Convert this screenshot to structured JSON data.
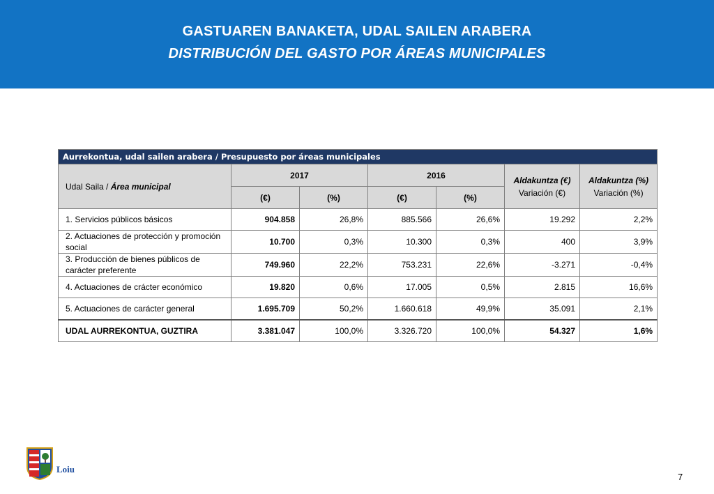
{
  "header": {
    "title": "GASTUAREN BANAKETA, UDAL SAILEN ARABERA",
    "subtitle": "DISTRIBUCIÓN DEL GASTO POR ÁREAS MUNICIPALES",
    "background_color": "#1273c4"
  },
  "table": {
    "caption": "Aurrekontua, udal sailen arabera  / Presupuesto  por áreas municipales",
    "area_header_eu": "Udal Saila / ",
    "area_header_es": "Área municipal",
    "year_2017": "2017",
    "year_2016": "2016",
    "unit_eur": "(€)",
    "unit_pct": "(%)",
    "var_eur_eu": "Aldakuntza (€)",
    "var_eur_es": "Variación (€)",
    "var_pct_eu": "Aldakuntza (%)",
    "var_pct_es": "Variación (%)",
    "rows": [
      {
        "label": "1. Servicios públicos básicos",
        "eur_2017": "904.858",
        "pct_2017": "26,8%",
        "eur_2016": "885.566",
        "pct_2016": "26,6%",
        "var_eur": "19.292",
        "var_pct": "2,2%"
      },
      {
        "label": "2. Actuaciones de protección y promoción social",
        "eur_2017": "10.700",
        "pct_2017": "0,3%",
        "eur_2016": "10.300",
        "pct_2016": "0,3%",
        "var_eur": "400",
        "var_pct": "3,9%"
      },
      {
        "label": "3. Producción de bienes públicos de carácter preferente",
        "eur_2017": "749.960",
        "pct_2017": "22,2%",
        "eur_2016": "753.231",
        "pct_2016": "22,6%",
        "var_eur": "-3.271",
        "var_pct": "-0,4%"
      },
      {
        "label": "4. Actuaciones de crácter económico",
        "eur_2017": "19.820",
        "pct_2017": "0,6%",
        "eur_2016": "17.005",
        "pct_2016": "0,5%",
        "var_eur": "2.815",
        "var_pct": "16,6%"
      },
      {
        "label": "5. Actuaciones de carácter general",
        "eur_2017": "1.695.709",
        "pct_2017": "50,2%",
        "eur_2016": "1.660.618",
        "pct_2016": "49,9%",
        "var_eur": "35.091",
        "var_pct": "2,1%"
      }
    ],
    "total": {
      "label": "UDAL AURREKONTUA, GUZTIRA",
      "eur_2017": "3.381.047",
      "pct_2017": "100,0%",
      "eur_2016": "3.326.720",
      "pct_2016": "100,0%",
      "var_eur": "54.327",
      "var_pct": "1,6%"
    }
  },
  "footer": {
    "logo_text": "Loiu",
    "page_number": "7"
  }
}
